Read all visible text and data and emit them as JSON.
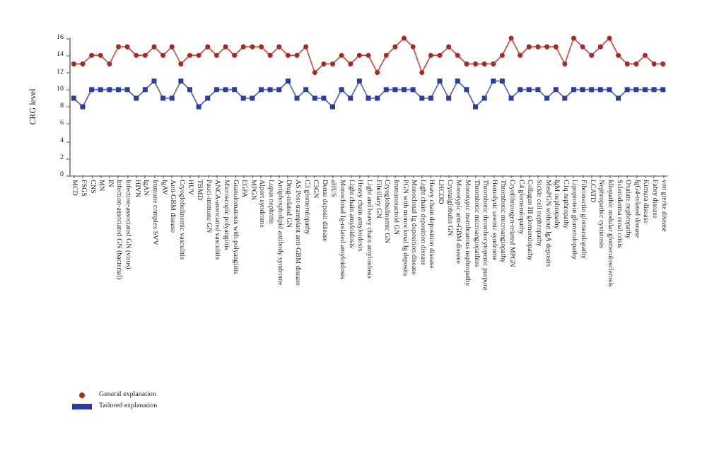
{
  "chart_data": {
    "type": "line",
    "ylabel": "CRG level",
    "ylim": [
      0,
      16
    ],
    "yticks": [
      0,
      2,
      4,
      6,
      8,
      10,
      12,
      14,
      16
    ],
    "grid": false,
    "legend": "bottom left",
    "categories": [
      "MCD",
      "FSGS",
      "CNS",
      "MN",
      "IN",
      "Infection-associated GN (bacterial)",
      "Infection-associated GN (virus)",
      "HIVN",
      "IgAN",
      "Immune complex SVV",
      "IgAV",
      "Anti-GBM disease",
      "Cryoglobulinemic vasculitis",
      "HUV",
      "TBMD",
      "Pauci-immune GN",
      "ANCA-associated vasculitis",
      "Microscopic polyangiitis",
      "Granulomatosis with polyangiitis",
      "EGPA",
      "MPGN",
      "Alport syndrome",
      "Lupus nephritis",
      "Antiphospholipid antibody syndrome",
      "Drug-related GN",
      "AS Post-transplant anti-GBM disease",
      "C3 glomerulopathy",
      "C3GN",
      "Dense deposit disease",
      "aHUS",
      "Monoclonal Ig-related amyloidosis",
      "Light chain amyloidosis",
      "Heavy chain amyloidosis",
      "Light and heavy chain amyloidosis",
      "Fibrillary GN",
      "Cryoglobulinemic GN",
      "Immunotactoid GN",
      "PGN with monoclonal Ig deposits",
      "Monoclonal Ig deposition disease",
      "Light chain deposition disease",
      "Heavy chain deposition disease",
      "LHCDD",
      "Crystalglobulin GN",
      "Monotypic anti-GBM disease",
      "Monotypic membranous nephropathy",
      "Thrombotic microangiopathies",
      "Thrombotic thrombocytopenic purpura",
      "Hemolytic uremic syndrome",
      "Thrombotic microangiopathy",
      "Cryofibrinogen-related MPGN",
      "C4 glomerulopathy",
      "Collagen III glomerulopathy",
      "Sickle cell nephropathy",
      "MesPGN without IgA deposits",
      "IgM nephropathy",
      "C1q nephropathy",
      "Lipoprotein glomerulopathy",
      "Fibronectin glomerulopathy",
      "LCATD",
      "Nephropathic cystinosis",
      "Idiopathic nodular glomerulosclerosis",
      "Scleroderma renal crisis",
      "Oxalate nephropathy",
      "IgG4-related disease",
      "Kimura disease",
      "Fabry disease",
      "von gierke disease"
    ],
    "series": [
      {
        "name": "General explanation",
        "color": "#b0261c",
        "marker": "circle",
        "values": [
          13,
          13,
          14,
          14,
          13,
          15,
          15,
          14,
          14,
          15,
          14,
          15,
          13,
          14,
          14,
          15,
          14,
          15,
          14,
          15,
          15,
          15,
          14,
          15,
          14,
          14,
          15,
          12,
          13,
          13,
          14,
          13,
          14,
          14,
          12,
          14,
          15,
          16,
          15,
          12,
          14,
          14,
          15,
          14,
          13,
          13,
          13,
          13,
          14,
          16,
          14,
          15,
          15,
          15,
          15,
          13,
          16,
          15,
          14,
          15,
          16,
          14,
          13,
          13,
          14,
          13,
          13
        ]
      },
      {
        "name": "Tailored explanation",
        "color": "#2a3ca8",
        "marker": "square",
        "values": [
          9,
          8,
          10,
          10,
          10,
          10,
          10,
          9,
          10,
          11,
          9,
          9,
          11,
          10,
          8,
          9,
          10,
          10,
          10,
          9,
          9,
          10,
          10,
          10,
          11,
          9,
          10,
          9,
          9,
          8,
          10,
          9,
          11,
          9,
          9,
          10,
          10,
          10,
          10,
          9,
          9,
          11,
          9,
          11,
          10,
          8,
          9,
          11,
          11,
          9,
          10,
          10,
          10,
          9,
          10,
          9,
          10,
          10,
          10,
          10,
          10,
          9,
          10,
          10,
          10,
          10,
          10
        ]
      }
    ]
  }
}
